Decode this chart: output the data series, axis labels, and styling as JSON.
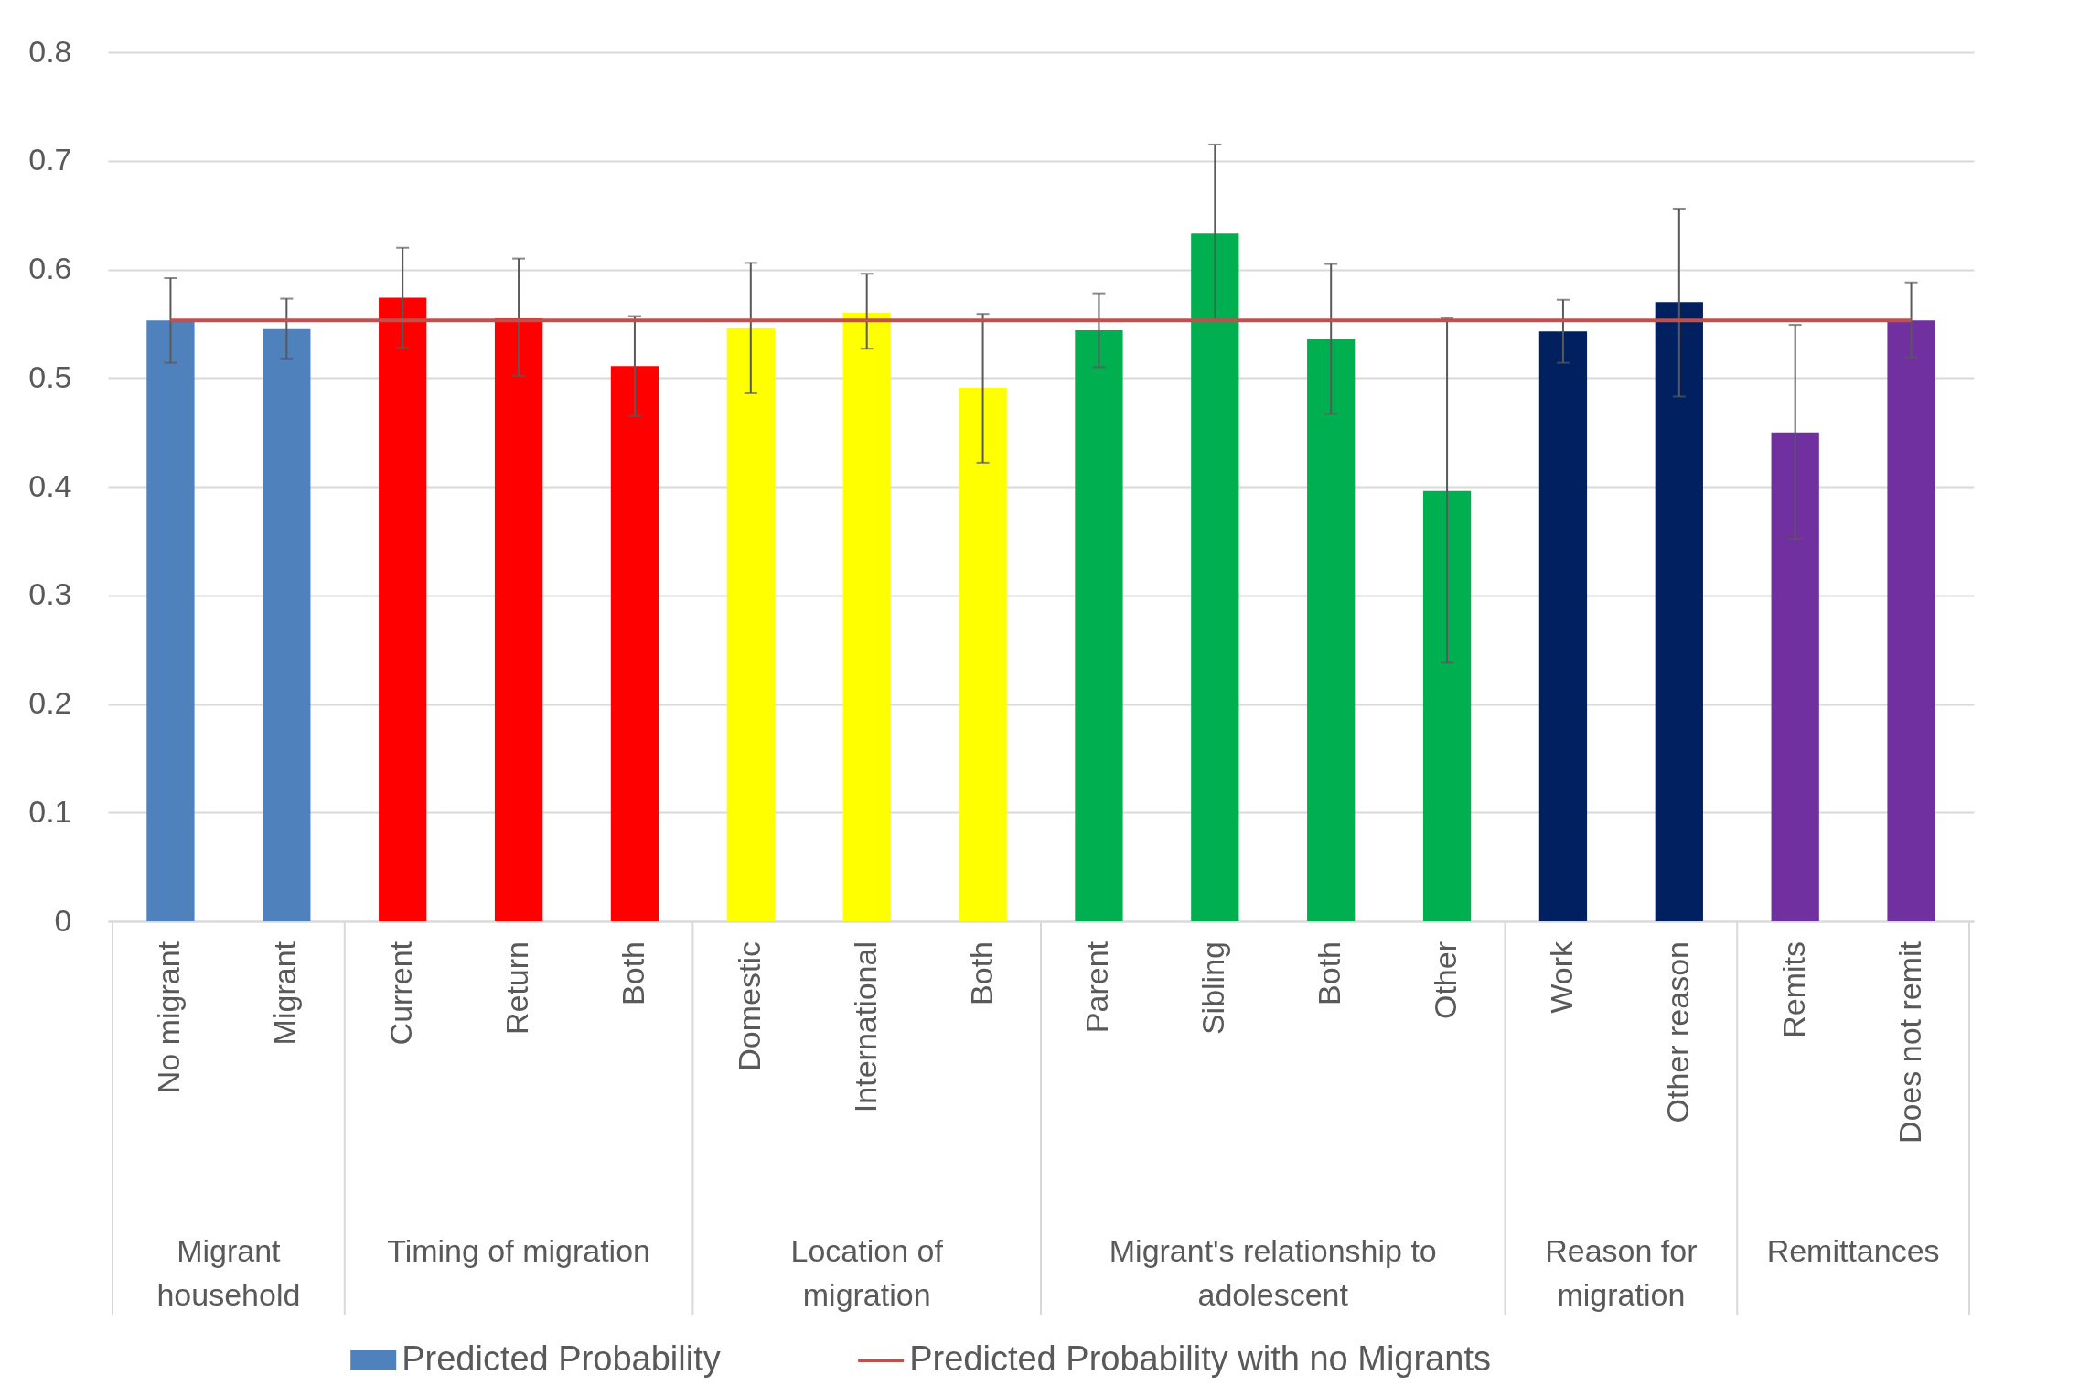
{
  "chart_data": {
    "type": "bar",
    "categories": [
      "No migrant",
      "Migrant",
      "Current",
      "Return",
      "Both",
      "Domestic",
      "International",
      "Both",
      "Parent",
      "Sibling",
      "Both",
      "Other",
      "Work",
      "Other reason",
      "Remits",
      "Does not remit"
    ],
    "series": [
      {
        "name": "Predicted Probability",
        "colors": [
          "#4f81bd",
          "#4f81bd",
          "#ff0000",
          "#ff0000",
          "#ff0000",
          "#ffff00",
          "#ffff00",
          "#ffff00",
          "#00b050",
          "#00b050",
          "#00b050",
          "#00b050",
          "#002060",
          "#002060",
          "#7030a0",
          "#7030a0"
        ],
        "values": [
          0.553,
          0.545,
          0.574,
          0.555,
          0.511,
          0.546,
          0.56,
          0.491,
          0.544,
          0.633,
          0.536,
          0.396,
          0.543,
          0.57,
          0.45,
          0.553
        ],
        "errors": [
          [
            0.514,
            0.592
          ],
          [
            0.518,
            0.573
          ],
          [
            0.528,
            0.62
          ],
          [
            0.502,
            0.61
          ],
          [
            0.465,
            0.557
          ],
          [
            0.486,
            0.606
          ],
          [
            0.527,
            0.596
          ],
          [
            0.422,
            0.559
          ],
          [
            0.51,
            0.578
          ],
          [
            0.553,
            0.715
          ],
          [
            0.467,
            0.605
          ],
          [
            0.238,
            0.555
          ],
          [
            0.514,
            0.572
          ],
          [
            0.483,
            0.656
          ],
          [
            0.352,
            0.549
          ],
          [
            0.519,
            0.588
          ]
        ]
      },
      {
        "name": "Predicted Probability with no Migrants",
        "type": "line",
        "color": "#c0504d",
        "values": [
          0.553,
          0.553,
          0.553,
          0.553,
          0.553,
          0.553,
          0.553,
          0.553,
          0.553,
          0.553,
          0.553,
          0.553,
          0.553,
          0.553,
          0.553,
          0.553
        ]
      }
    ],
    "annotations": [
      "Migrant household",
      "Timing of migration",
      "Location of migration",
      "Migrant's relationship to adolescent",
      "Reason for migration",
      "Remittances"
    ],
    "ylim": [
      0,
      0.8
    ],
    "yticks": [
      0,
      0.1,
      0.2,
      0.3,
      0.4,
      0.5,
      0.6,
      0.7,
      0.8
    ],
    "grid": "y",
    "legend": "bottom"
  }
}
